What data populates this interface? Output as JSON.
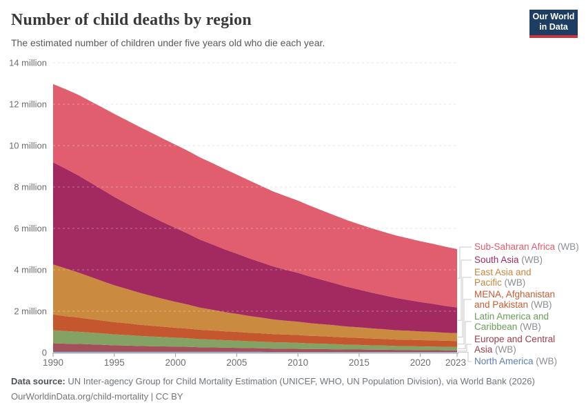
{
  "header": {
    "title": "Number of child deaths by region",
    "subtitle": "The estimated number of children under five years old who die each year.",
    "logo_line1": "Our World",
    "logo_line2": "in Data",
    "logo_bg": "#1d3d63",
    "logo_bar": "#cc353e"
  },
  "footer": {
    "source_label": "Data source:",
    "source_text": " UN Inter-agency Group for Child Mortality Estimation (UNICEF, WHO, UN Population Division), via World Bank (2026)",
    "link_text": "OurWorldinData.org/child-mortality | CC BY"
  },
  "chart_data": {
    "type": "area",
    "stacked": true,
    "title": "Number of child deaths by region",
    "unit": "million deaths per year",
    "ylim": [
      0,
      14
    ],
    "grid": true,
    "legend_position": "right",
    "x": [
      1990,
      1991,
      1992,
      1993,
      1994,
      1995,
      1996,
      1997,
      1998,
      1999,
      2000,
      2001,
      2002,
      2003,
      2004,
      2005,
      2006,
      2007,
      2008,
      2009,
      2010,
      2011,
      2012,
      2013,
      2014,
      2015,
      2016,
      2017,
      2018,
      2019,
      2020,
      2021,
      2022,
      2023
    ],
    "x_ticks": [
      1990,
      1995,
      2000,
      2005,
      2010,
      2015,
      2020,
      2023
    ],
    "y_ticks": [
      {
        "v": 0,
        "label": "0"
      },
      {
        "v": 2,
        "label": "2 million"
      },
      {
        "v": 4,
        "label": "4 million"
      },
      {
        "v": 6,
        "label": "6 million"
      },
      {
        "v": 8,
        "label": "8 million"
      },
      {
        "v": 10,
        "label": "10 million"
      },
      {
        "v": 12,
        "label": "12 million"
      },
      {
        "v": 14,
        "label": "14 million"
      }
    ],
    "series": [
      {
        "id": "sub-saharan-africa",
        "name": "Sub-Saharan Africa (WB)",
        "label_lines": [
          "Sub-Saharan Africa"
        ],
        "suffix": "(WB)",
        "color": "#e05e6e",
        "label_color": "#e05c6c",
        "values": [
          3.78,
          3.84,
          3.89,
          3.93,
          3.97,
          4.01,
          4.03,
          4.04,
          4.05,
          4.04,
          4.02,
          4.0,
          3.97,
          3.93,
          3.88,
          3.82,
          3.76,
          3.69,
          3.62,
          3.56,
          3.49,
          3.42,
          3.35,
          3.28,
          3.22,
          3.16,
          3.11,
          3.06,
          3.02,
          2.98,
          2.94,
          2.9,
          2.86,
          2.82
        ]
      },
      {
        "id": "south-asia",
        "name": "South Asia (WB)",
        "label_lines": [
          "South Asia"
        ],
        "suffix": "(WB)",
        "color": "#a32a60",
        "label_color": "#a02a60",
        "values": [
          4.93,
          4.82,
          4.7,
          4.56,
          4.42,
          4.27,
          4.12,
          3.98,
          3.84,
          3.7,
          3.57,
          3.43,
          3.29,
          3.16,
          3.03,
          2.91,
          2.79,
          2.67,
          2.56,
          2.46,
          2.36,
          2.25,
          2.14,
          2.03,
          1.92,
          1.82,
          1.73,
          1.64,
          1.56,
          1.48,
          1.42,
          1.36,
          1.3,
          1.24
        ]
      },
      {
        "id": "east-asia-pacific",
        "name": "East Asia and Pacific (WB)",
        "label_lines": [
          "East Asia and",
          "Pacific"
        ],
        "suffix": "(WB)",
        "color": "#ca8a3f",
        "label_color": "#c9853c",
        "values": [
          2.42,
          2.31,
          2.18,
          2.05,
          1.91,
          1.78,
          1.66,
          1.55,
          1.44,
          1.34,
          1.25,
          1.16,
          1.07,
          1.0,
          0.93,
          0.87,
          0.81,
          0.76,
          0.71,
          0.67,
          0.64,
          0.61,
          0.58,
          0.56,
          0.53,
          0.51,
          0.49,
          0.47,
          0.45,
          0.44,
          0.42,
          0.41,
          0.39,
          0.38
        ]
      },
      {
        "id": "mena-afghanistan-pakistan",
        "name": "MENA, Afghanistan and Pakistan (WB)",
        "label_lines": [
          "MENA, Afghanistan",
          "and Pakistan"
        ],
        "suffix": "(WB)",
        "color": "#c4572d",
        "label_color": "#c95b31",
        "values": [
          0.76,
          0.72,
          0.69,
          0.65,
          0.62,
          0.59,
          0.57,
          0.54,
          0.52,
          0.5,
          0.48,
          0.47,
          0.45,
          0.44,
          0.43,
          0.42,
          0.41,
          0.4,
          0.39,
          0.38,
          0.38,
          0.37,
          0.36,
          0.35,
          0.35,
          0.34,
          0.33,
          0.32,
          0.31,
          0.31,
          0.3,
          0.3,
          0.29,
          0.29
        ]
      },
      {
        "id": "latin-america-caribbean",
        "name": "Latin America and Caribbean (WB)",
        "label_lines": [
          "Latin America and",
          "Caribbean"
        ],
        "suffix": "(WB)",
        "color": "#85a265",
        "label_color": "#689e58",
        "values": [
          0.63,
          0.61,
          0.59,
          0.57,
          0.55,
          0.53,
          0.51,
          0.49,
          0.47,
          0.45,
          0.43,
          0.41,
          0.39,
          0.38,
          0.36,
          0.35,
          0.33,
          0.32,
          0.31,
          0.3,
          0.29,
          0.27,
          0.26,
          0.25,
          0.23,
          0.22,
          0.21,
          0.2,
          0.19,
          0.18,
          0.18,
          0.17,
          0.17,
          0.16
        ]
      },
      {
        "id": "europe-central-asia",
        "name": "Europe and Central Asia (WB)",
        "label_lines": [
          "Europe and Central",
          "Asia"
        ],
        "suffix": "(WB)",
        "color": "#a3505b",
        "label_color": "#a03e4b",
        "values": [
          0.4,
          0.38,
          0.37,
          0.35,
          0.33,
          0.31,
          0.3,
          0.28,
          0.27,
          0.26,
          0.25,
          0.24,
          0.22,
          0.21,
          0.2,
          0.19,
          0.18,
          0.17,
          0.16,
          0.16,
          0.15,
          0.14,
          0.14,
          0.13,
          0.12,
          0.12,
          0.11,
          0.11,
          0.1,
          0.1,
          0.09,
          0.09,
          0.08,
          0.08
        ]
      },
      {
        "id": "north-america",
        "name": "North America (WB)",
        "label_lines": [
          "North America"
        ],
        "suffix": "(WB)",
        "color": "#7896c0",
        "label_color": "#5c80b4",
        "values": [
          0.05,
          0.05,
          0.05,
          0.05,
          0.05,
          0.04,
          0.04,
          0.04,
          0.04,
          0.04,
          0.04,
          0.04,
          0.04,
          0.04,
          0.04,
          0.04,
          0.04,
          0.04,
          0.03,
          0.03,
          0.03,
          0.03,
          0.03,
          0.03,
          0.03,
          0.03,
          0.03,
          0.03,
          0.03,
          0.03,
          0.03,
          0.03,
          0.03,
          0.03
        ]
      }
    ]
  }
}
